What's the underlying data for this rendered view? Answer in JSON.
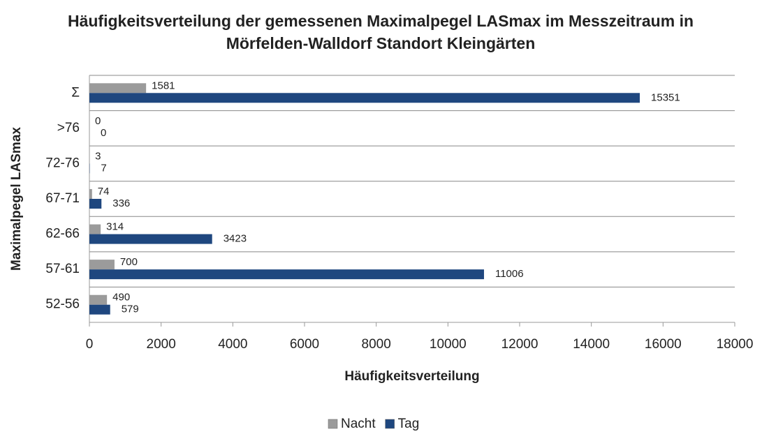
{
  "chart_data": {
    "type": "hbar",
    "title": "Häufigkeitsverteilung der gemessenen Maximalpegel LASmax im Messzeitraum in Mörfelden-Walldorf Standort Kleingärten",
    "x_label": "Häufigkeitsverteilung",
    "y_label": "Maximalpegel LASmax",
    "categories": [
      "52-56",
      "57-61",
      "62-66",
      "67-71",
      "72-76",
      ">76",
      "Σ"
    ],
    "series": [
      {
        "name": "Nacht",
        "color": "#9b9b9b",
        "values": [
          490,
          700,
          314,
          74,
          3,
          0,
          1581
        ]
      },
      {
        "name": "Tag",
        "color": "#1f477f",
        "values": [
          579,
          11006,
          3423,
          336,
          7,
          0,
          15351
        ]
      }
    ],
    "xlim": [
      0,
      18000
    ],
    "xticks": [
      0,
      2000,
      4000,
      6000,
      8000,
      10000,
      12000,
      14000,
      16000,
      18000
    ],
    "legend": "bottom"
  }
}
